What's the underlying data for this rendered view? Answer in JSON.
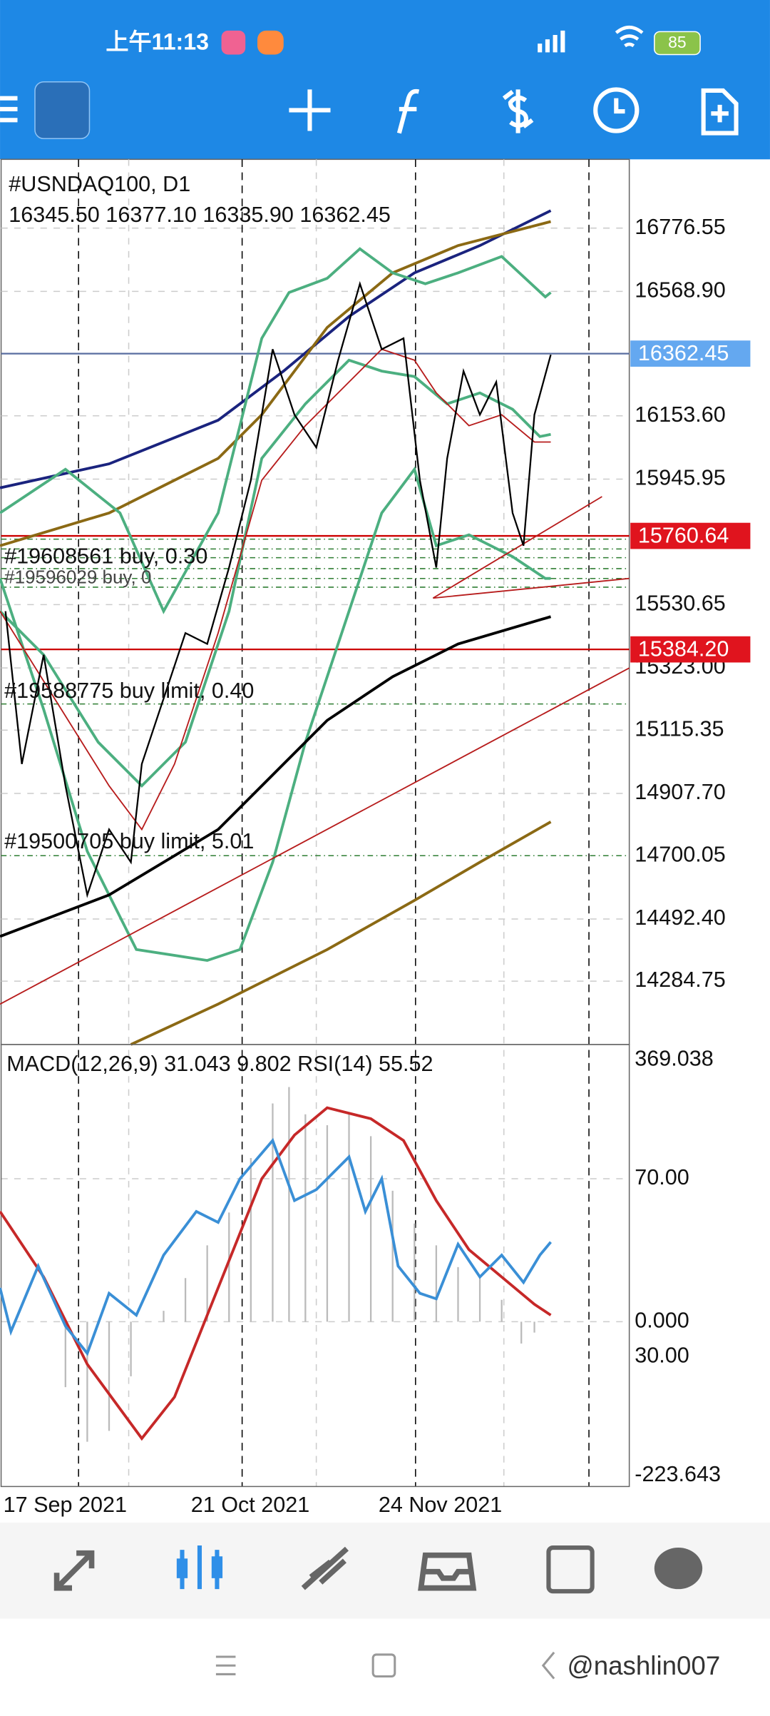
{
  "status_bar": {
    "time": "上午11:13",
    "battery": "85"
  },
  "chart": {
    "symbol": "#USNDAQ100, D1",
    "ohlc": "16345.50 16377.10 16335.90 16362.45",
    "orders": [
      "#19608561 buy, 0.30",
      "#19596029 buy, 0",
      "#19588775 buy limit, 0.40",
      "#19500705 buy limit, 5.01"
    ],
    "price_axis": [
      "16776.55",
      "16568.90",
      "16153.60",
      "15945.95",
      "15530.65",
      "15323.00",
      "15115.35",
      "14907.70",
      "14700.05",
      "14492.40",
      "14284.75"
    ],
    "current_price": "16362.45",
    "levels": [
      "15760.64",
      "15384.20"
    ],
    "indicator": "MACD(12,26,9) 31.043 9.802 RSI(14) 55.52",
    "indicator_axis": [
      "369.038",
      "70.00",
      "0.000",
      "30.00",
      "-223.643"
    ],
    "dates": [
      "17 Sep 2021",
      "21 Oct 2021",
      "24 Nov 2021"
    ]
  },
  "watermark": "@nashlin007"
}
